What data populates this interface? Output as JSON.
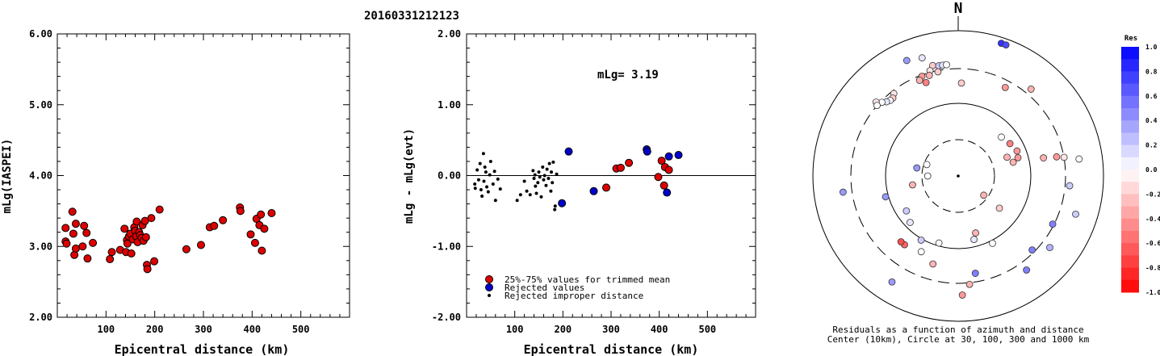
{
  "title": "20160331212123",
  "chart_data": [
    {
      "type": "scatter",
      "ylabel": "mLg(IASPEI)",
      "xlabel": "Epicentral distance (km)",
      "xlim": [
        0,
        600
      ],
      "ylim": [
        2.0,
        6.0
      ],
      "xticks": [
        "100",
        "200",
        "300",
        "400",
        "500"
      ],
      "yticks": [
        "2.00",
        "3.00",
        "4.00",
        "5.00",
        "6.00"
      ],
      "series": [
        {
          "color": "#dd0000",
          "points": [
            [
              17,
              3.26
            ],
            [
              17,
              3.07
            ],
            [
              19,
              3.04
            ],
            [
              31,
              3.49
            ],
            [
              33,
              3.18
            ],
            [
              35,
              2.88
            ],
            [
              38,
              2.97
            ],
            [
              38,
              3.32
            ],
            [
              52,
              3.0
            ],
            [
              55,
              3.29
            ],
            [
              60,
              3.19
            ],
            [
              62,
              2.83
            ],
            [
              73,
              3.05
            ],
            [
              108,
              2.82
            ],
            [
              112,
              2.92
            ],
            [
              129,
              2.95
            ],
            [
              138,
              3.25
            ],
            [
              141,
              2.92
            ],
            [
              143,
              3.09
            ],
            [
              144,
              3.04
            ],
            [
              147,
              3.14
            ],
            [
              150,
              3.18
            ],
            [
              152,
              2.9
            ],
            [
              155,
              3.1
            ],
            [
              158,
              3.27
            ],
            [
              160,
              3.22
            ],
            [
              162,
              3.14
            ],
            [
              163,
              3.35
            ],
            [
              165,
              3.06
            ],
            [
              168,
              3.2
            ],
            [
              170,
              3.16
            ],
            [
              173,
              3.12
            ],
            [
              175,
              3.3
            ],
            [
              177,
              3.08
            ],
            [
              180,
              3.36
            ],
            [
              182,
              3.13
            ],
            [
              184,
              2.74
            ],
            [
              185,
              2.68
            ],
            [
              193,
              3.4
            ],
            [
              199,
              2.79
            ],
            [
              210,
              3.52
            ],
            [
              265,
              2.96
            ],
            [
              295,
              3.02
            ],
            [
              313,
              3.27
            ],
            [
              322,
              3.29
            ],
            [
              340,
              3.37
            ],
            [
              375,
              3.55
            ],
            [
              376,
              3.5
            ],
            [
              397,
              3.17
            ],
            [
              406,
              3.05
            ],
            [
              409,
              3.39
            ],
            [
              415,
              3.3
            ],
            [
              418,
              3.45
            ],
            [
              420,
              2.94
            ],
            [
              425,
              3.25
            ],
            [
              440,
              3.47
            ]
          ]
        }
      ]
    },
    {
      "type": "scatter",
      "ylabel": "mLg - mLg(evt)",
      "xlabel": "Epicentral distance (km)",
      "xlim": [
        0,
        600
      ],
      "ylim": [
        -2.0,
        2.0
      ],
      "xticks": [
        "100",
        "200",
        "300",
        "400",
        "500"
      ],
      "yticks": [
        "-2.00",
        "-1.00",
        "0.00",
        "1.00",
        "2.00"
      ],
      "annotation": "mLg= 3.19",
      "legend": [
        {
          "label": "25%-75% values for trimmed mean",
          "color": "#dd0000"
        },
        {
          "label": "Rejected values",
          "color": "#0000cc"
        },
        {
          "label": "Rejected improper distance",
          "color": "#000000"
        }
      ],
      "series": [
        {
          "name": "25%-75% values for trimmed mean",
          "color": "#dd0000",
          "points": [
            [
              290,
              -0.17
            ],
            [
              311,
              0.1
            ],
            [
              320,
              0.11
            ],
            [
              337,
              0.18
            ],
            [
              398,
              -0.02
            ],
            [
              405,
              0.21
            ],
            [
              410,
              -0.14
            ],
            [
              412,
              0.12
            ],
            [
              420,
              0.08
            ]
          ]
        },
        {
          "name": "Rejected values",
          "color": "#0000cc",
          "points": [
            [
              198,
              -0.39
            ],
            [
              212,
              0.34
            ],
            [
              264,
              -0.22
            ],
            [
              374,
              0.37
            ],
            [
              375,
              0.34
            ],
            [
              416,
              -0.24
            ],
            [
              420,
              0.27
            ],
            [
              440,
              0.29
            ]
          ]
        },
        {
          "name": "Rejected improper distance",
          "color": "#000000",
          "points": [
            [
              17,
              -0.12
            ],
            [
              18,
              -0.18
            ],
            [
              22,
              0.08
            ],
            [
              25,
              -0.06
            ],
            [
              28,
              0.17
            ],
            [
              30,
              -0.2
            ],
            [
              32,
              -0.29
            ],
            [
              35,
              0.31
            ],
            [
              36,
              -0.08
            ],
            [
              38,
              0.12
            ],
            [
              40,
              0.05
            ],
            [
              42,
              -0.16
            ],
            [
              45,
              -0.23
            ],
            [
              48,
              0.01
            ],
            [
              50,
              0.2
            ],
            [
              55,
              -0.12
            ],
            [
              58,
              0.06
            ],
            [
              60,
              -0.35
            ],
            [
              65,
              -0.05
            ],
            [
              70,
              -0.19
            ],
            [
              105,
              -0.35
            ],
            [
              112,
              -0.27
            ],
            [
              120,
              -0.08
            ],
            [
              125,
              -0.22
            ],
            [
              132,
              -0.27
            ],
            [
              138,
              0.07
            ],
            [
              140,
              -0.04
            ],
            [
              142,
              0.01
            ],
            [
              143,
              -0.15
            ],
            [
              145,
              -0.25
            ],
            [
              148,
              -0.1
            ],
            [
              150,
              0.05
            ],
            [
              152,
              -0.02
            ],
            [
              155,
              -0.3
            ],
            [
              158,
              0.12
            ],
            [
              160,
              -0.06
            ],
            [
              162,
              0.0
            ],
            [
              165,
              -0.14
            ],
            [
              167,
              0.09
            ],
            [
              170,
              -0.04
            ],
            [
              172,
              0.17
            ],
            [
              175,
              -0.22
            ],
            [
              176,
              0.05
            ],
            [
              178,
              -0.1
            ],
            [
              180,
              0.19
            ],
            [
              183,
              -0.48
            ],
            [
              184,
              -0.43
            ],
            [
              187,
              0.02
            ]
          ]
        }
      ]
    }
  ],
  "polar": {
    "north_label": "N",
    "caption_line1": "Residuals as a function of azimuth and distance",
    "caption_line2": "Center (10km), Circle at 30, 100, 300 and 1000 km",
    "stations": [
      {
        "az": 18,
        "r": 0.96,
        "res": 0.8
      },
      {
        "az": 20,
        "r": 0.96,
        "res": 0.7
      },
      {
        "az": 336,
        "r": 0.87,
        "res": 0.4
      },
      {
        "az": 343,
        "r": 0.85,
        "res": 0.1
      },
      {
        "az": 347,
        "r": 0.78,
        "res": -0.2
      },
      {
        "az": 350,
        "r": 0.77,
        "res": 0.2
      },
      {
        "az": 352,
        "r": 0.77,
        "res": 0.1
      },
      {
        "az": 354,
        "r": 0.77,
        "res": 0.0
      },
      {
        "az": 345,
        "r": 0.75,
        "res": -0.1
      },
      {
        "az": 349,
        "r": 0.73,
        "res": -0.2
      },
      {
        "az": 340,
        "r": 0.73,
        "res": -0.4
      },
      {
        "az": 338,
        "r": 0.71,
        "res": -0.3
      },
      {
        "az": 341,
        "r": 0.68,
        "res": -0.5
      },
      {
        "az": 344,
        "r": 0.72,
        "res": -0.3
      },
      {
        "az": 2,
        "r": 0.64,
        "res": -0.2
      },
      {
        "az": 28,
        "r": 0.69,
        "res": -0.4
      },
      {
        "az": 40,
        "r": 0.78,
        "res": -0.3
      },
      {
        "az": 322,
        "r": 0.72,
        "res": -0.1
      },
      {
        "az": 320,
        "r": 0.7,
        "res": -0.2
      },
      {
        "az": 318,
        "r": 0.7,
        "res": 0.0
      },
      {
        "az": 316,
        "r": 0.71,
        "res": 0.1
      },
      {
        "az": 314,
        "r": 0.73,
        "res": 0.0
      },
      {
        "az": 312,
        "r": 0.76,
        "res": -0.1
      },
      {
        "az": 311,
        "r": 0.74,
        "res": 0.0
      },
      {
        "az": 48,
        "r": 0.4,
        "res": 0.0
      },
      {
        "az": 58,
        "r": 0.42,
        "res": -0.5
      },
      {
        "az": 67,
        "r": 0.44,
        "res": -0.4
      },
      {
        "az": 69,
        "r": 0.36,
        "res": -0.3
      },
      {
        "az": 73,
        "r": 0.43,
        "res": -0.4
      },
      {
        "az": 76,
        "r": 0.39,
        "res": -0.3
      },
      {
        "az": 78,
        "r": 0.6,
        "res": -0.3
      },
      {
        "az": 79,
        "r": 0.69,
        "res": -0.4
      },
      {
        "az": 80,
        "r": 0.74,
        "res": -0.1
      },
      {
        "az": 82,
        "r": 0.84,
        "res": 0.0
      },
      {
        "az": 95,
        "r": 0.77,
        "res": 0.2
      },
      {
        "az": 108,
        "r": 0.85,
        "res": 0.2
      },
      {
        "az": 117,
        "r": 0.73,
        "res": 0.5
      },
      {
        "az": 128,
        "r": 0.8,
        "res": 0.3
      },
      {
        "az": 144,
        "r": 0.8,
        "res": 0.5
      },
      {
        "az": 128,
        "r": 0.36,
        "res": -0.2
      },
      {
        "az": 163,
        "r": 0.41,
        "res": -0.3
      },
      {
        "az": 170,
        "r": 0.68,
        "res": 0.5
      },
      {
        "az": 174,
        "r": 0.75,
        "res": -0.3
      },
      {
        "az": 178,
        "r": 0.82,
        "res": -0.4
      },
      {
        "az": 196,
        "r": 0.48,
        "res": 0.0
      },
      {
        "az": 206,
        "r": 0.58,
        "res": 0.0
      },
      {
        "az": 210,
        "r": 0.51,
        "res": 0.2
      },
      {
        "az": 212,
        "r": 0.86,
        "res": 0.4
      },
      {
        "az": 218,
        "r": 0.6,
        "res": -0.6
      },
      {
        "az": 221,
        "r": 0.6,
        "res": -0.7
      },
      {
        "az": 226,
        "r": 0.46,
        "res": 0.1
      },
      {
        "az": 236,
        "r": 0.43,
        "res": 0.2
      },
      {
        "az": 254,
        "r": 0.52,
        "res": 0.4
      },
      {
        "az": 259,
        "r": 0.32,
        "res": -0.3
      },
      {
        "az": 262,
        "r": 0.8,
        "res": 0.4
      },
      {
        "az": 281,
        "r": 0.29,
        "res": 0.4
      },
      {
        "az": 290,
        "r": 0.23,
        "res": 0.0
      },
      {
        "az": 270,
        "r": 0.21,
        "res": 0.0
      },
      {
        "az": 166,
        "r": 0.45,
        "res": 0.1
      },
      {
        "az": 127,
        "r": 0.22,
        "res": -0.3
      },
      {
        "az": 153,
        "r": 0.52,
        "res": 0.0
      },
      {
        "az": 196,
        "r": 0.63,
        "res": -0.3
      },
      {
        "az": 135,
        "r": 0.72,
        "res": 0.5
      }
    ]
  },
  "colorbar": {
    "title": "Res",
    "ticks": [
      "1.0",
      "0.8",
      "0.6",
      "0.4",
      "0.2",
      "0.0",
      "-0.2",
      "-0.4",
      "-0.6",
      "-0.8",
      "-1.0"
    ]
  }
}
